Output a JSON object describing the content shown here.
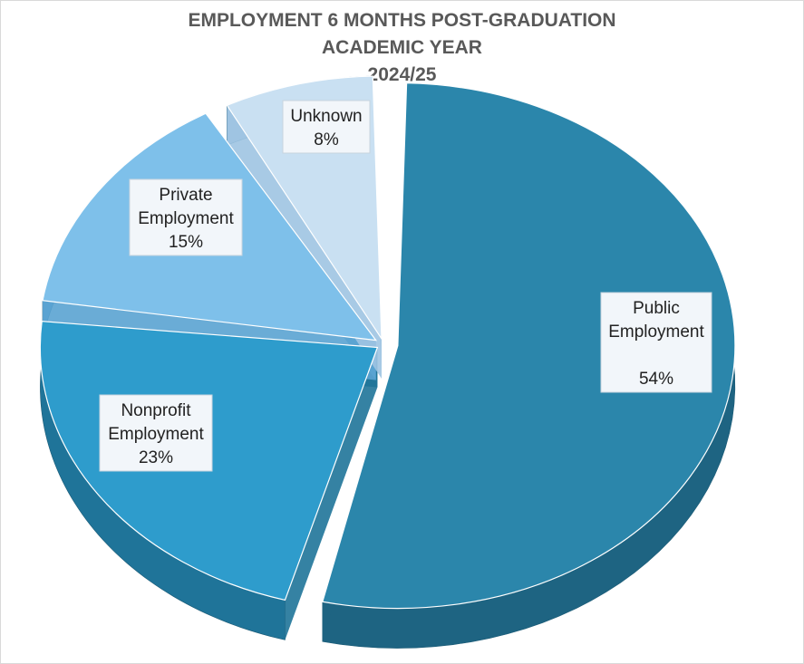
{
  "chart_data": {
    "type": "pie",
    "title_lines": [
      "EMPLOYMENT 6 MONTHS POST-GRADUATION",
      "ACADEMIC YEAR",
      "2024/25"
    ],
    "slices": [
      {
        "label_lines": [
          "Public",
          "Employment",
          "",
          "54%"
        ],
        "value": 54,
        "color": "#2b86ab",
        "side": "#1e6482"
      },
      {
        "label_lines": [
          "Nonprofit",
          "Employment",
          "23%"
        ],
        "value": 23,
        "color": "#2e9ccc",
        "side": "#1f7499"
      },
      {
        "label_lines": [
          "Private",
          "Employment",
          "15%"
        ],
        "value": 15,
        "color": "#7ec0ea",
        "side": "#5aa3d1"
      },
      {
        "label_lines": [
          "Unknown",
          "8%"
        ],
        "value": 8,
        "color": "#c9e0f2",
        "side": "#9fc4e2"
      }
    ]
  }
}
